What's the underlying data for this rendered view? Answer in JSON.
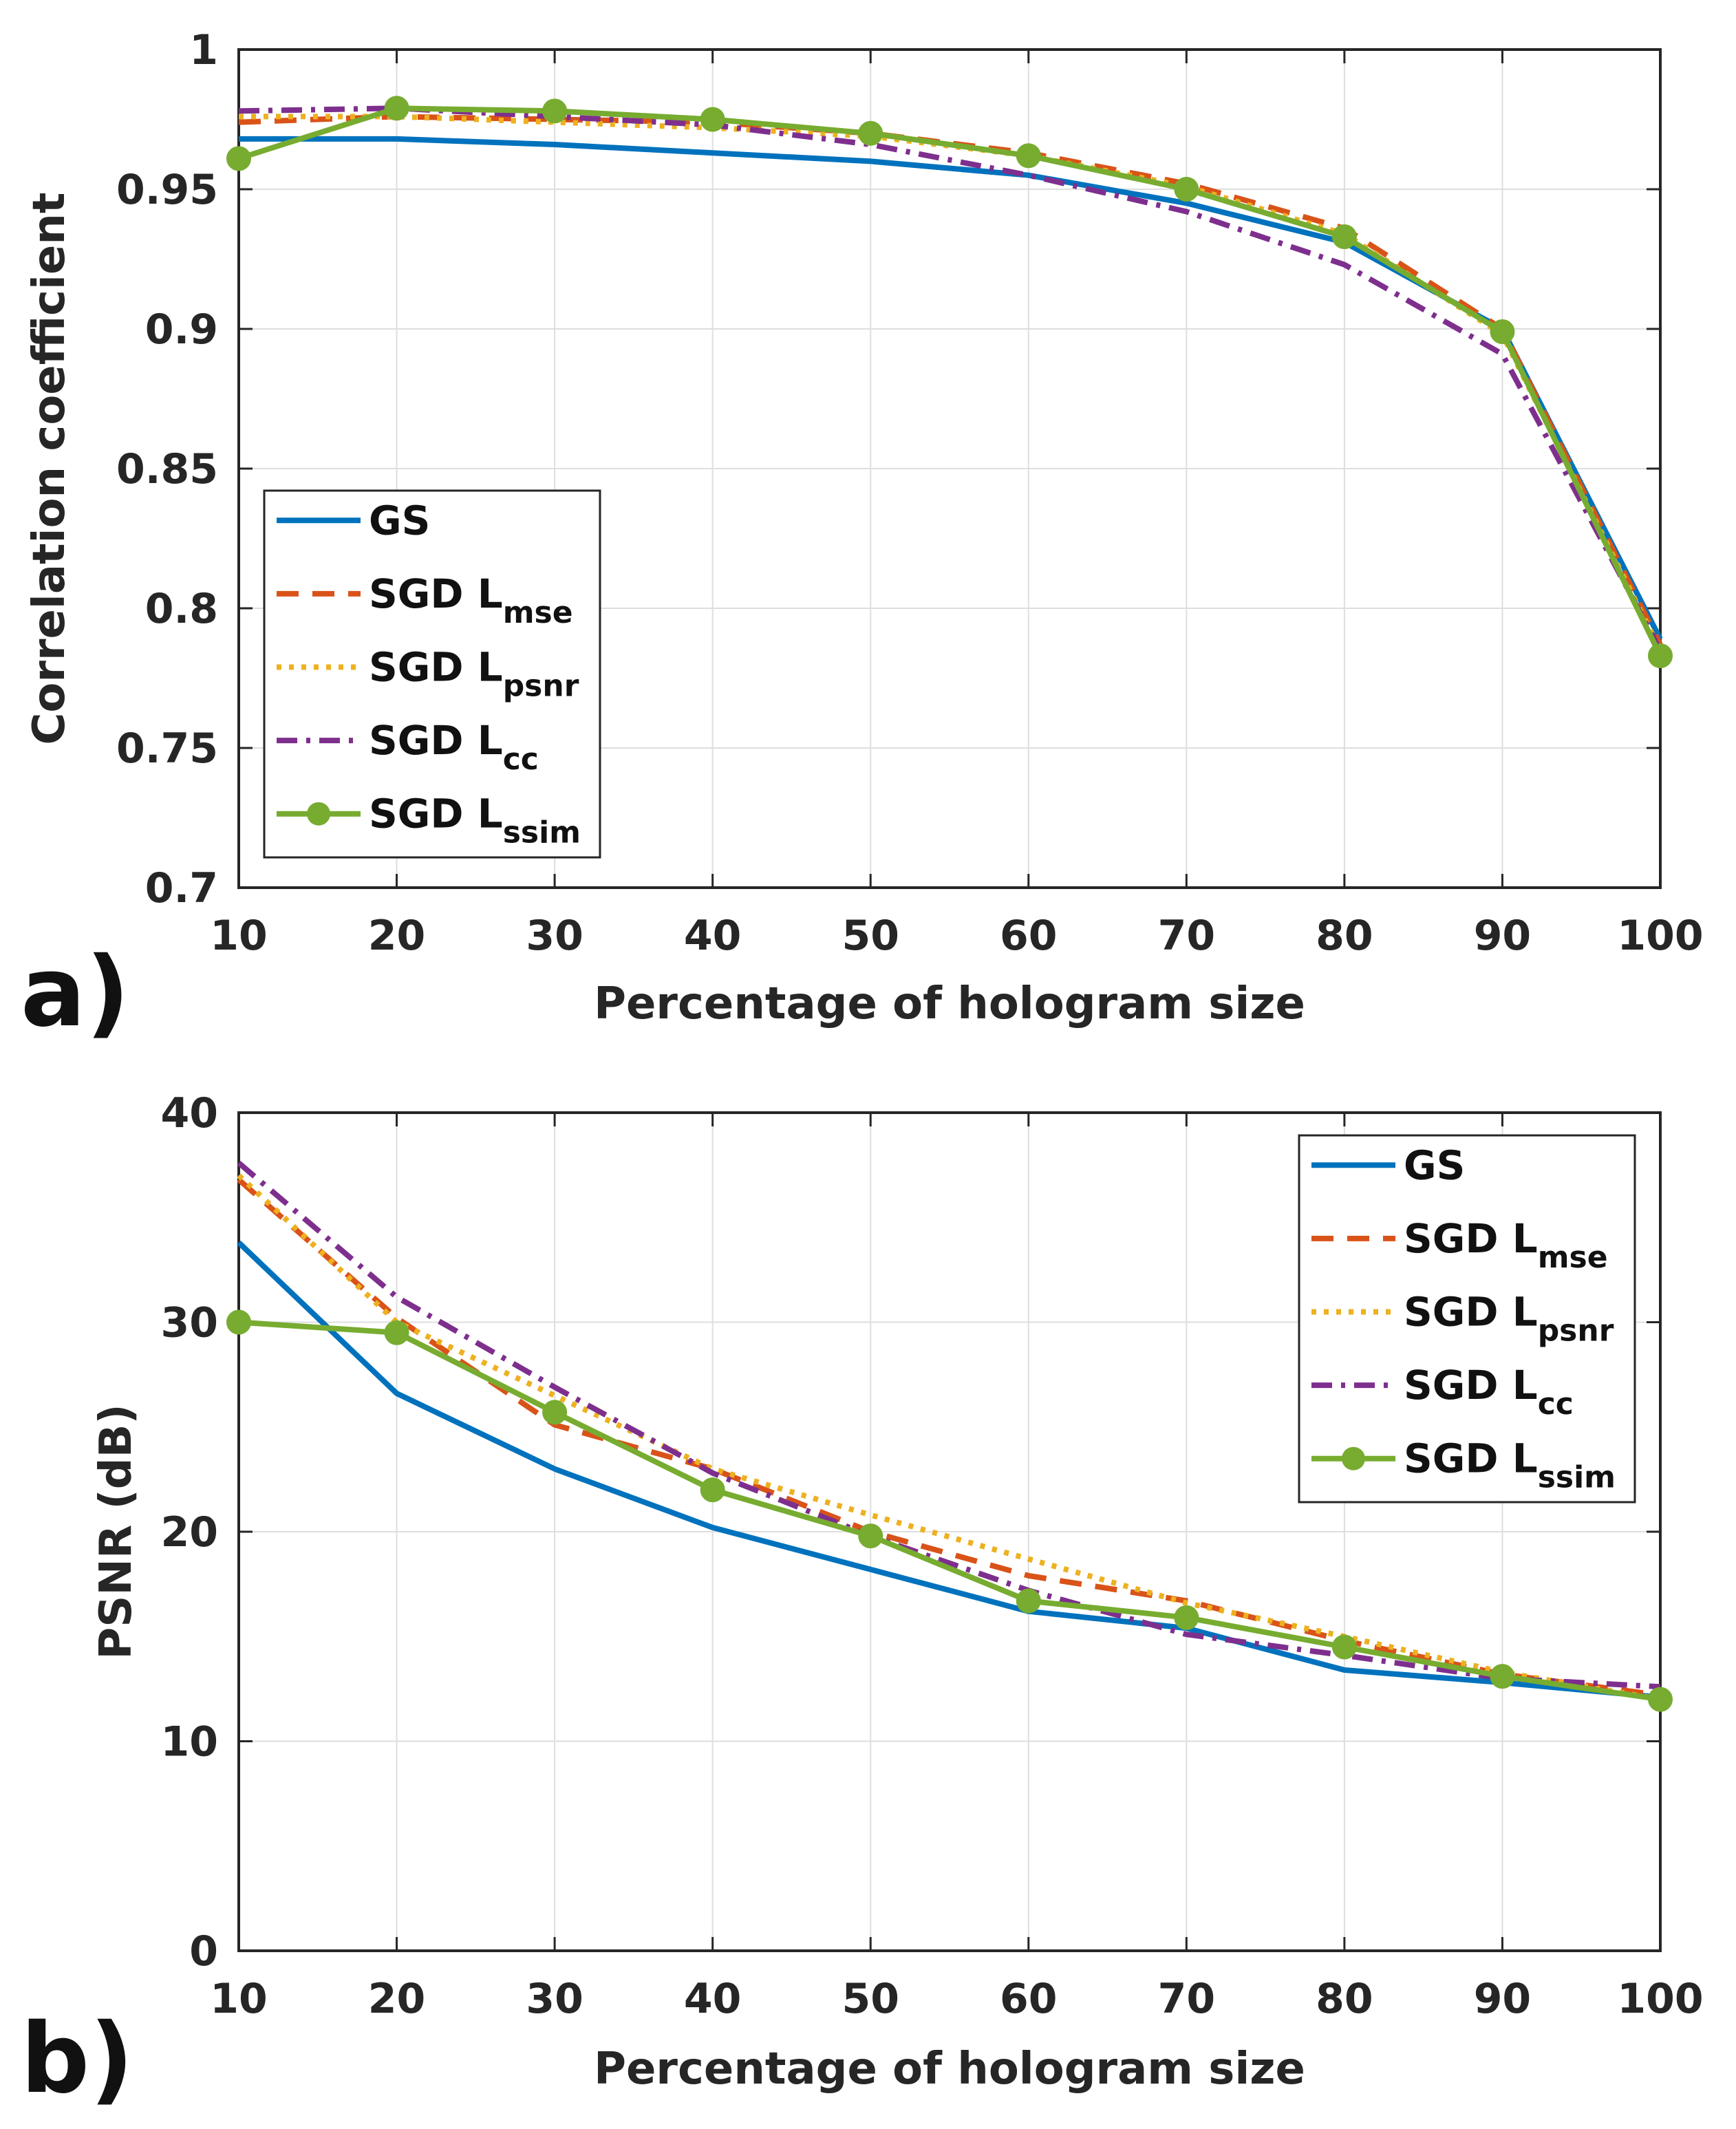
{
  "chart_data": [
    {
      "type": "line",
      "panel": "a)",
      "xlabel": "Percentage of hologram size",
      "ylabel": "Correlation coefficient",
      "x": [
        10,
        20,
        30,
        40,
        50,
        60,
        70,
        80,
        90,
        100
      ],
      "xlim": [
        10,
        100
      ],
      "ylim": [
        0.7,
        1
      ],
      "xticks": [
        "10",
        "20",
        "30",
        "40",
        "50",
        "60",
        "70",
        "80",
        "90",
        "100"
      ],
      "yticks": [
        {
          "value": 0.7,
          "label": "0.7"
        },
        {
          "value": 0.75,
          "label": "0.75"
        },
        {
          "value": 0.8,
          "label": "0.8"
        },
        {
          "value": 0.85,
          "label": "0.85"
        },
        {
          "value": 0.9,
          "label": "0.9"
        },
        {
          "value": 0.95,
          "label": "0.95"
        },
        {
          "value": 1,
          "label": "1"
        }
      ],
      "grid": true,
      "legend_position": "lower-left",
      "series": [
        {
          "name": "GS",
          "label_main": "GS",
          "label_sub": "",
          "color": "#0072BD",
          "style": "solid",
          "marker": false,
          "values": [
            0.968,
            0.968,
            0.966,
            0.963,
            0.96,
            0.955,
            0.945,
            0.931,
            0.9,
            0.789
          ]
        },
        {
          "name": "SGD Lmse",
          "label_main": "SGD L",
          "label_sub": "mse",
          "color": "#D95319",
          "style": "dashed",
          "marker": false,
          "values": [
            0.974,
            0.976,
            0.975,
            0.974,
            0.97,
            0.963,
            0.952,
            0.936,
            0.9,
            0.787
          ]
        },
        {
          "name": "SGD Lpsnr",
          "label_main": "SGD L",
          "label_sub": "psnr",
          "color": "#EDB120",
          "style": "dotted",
          "marker": false,
          "values": [
            0.976,
            0.976,
            0.974,
            0.972,
            0.969,
            0.962,
            0.951,
            0.934,
            0.898,
            0.785
          ]
        },
        {
          "name": "SGD Lcc",
          "label_main": "SGD L",
          "label_sub": "cc",
          "color": "#7E2F8E",
          "style": "dashdot",
          "marker": false,
          "values": [
            0.978,
            0.979,
            0.976,
            0.973,
            0.966,
            0.955,
            0.942,
            0.923,
            0.891,
            0.785
          ]
        },
        {
          "name": "SGD Lssim",
          "label_main": "SGD L",
          "label_sub": "ssim",
          "color": "#77AC30",
          "style": "solid",
          "marker": true,
          "values": [
            0.961,
            0.979,
            0.978,
            0.975,
            0.97,
            0.962,
            0.95,
            0.933,
            0.899,
            0.783
          ]
        }
      ]
    },
    {
      "type": "line",
      "panel": "b)",
      "xlabel": "Percentage of hologram size",
      "ylabel": "PSNR (dB)",
      "x": [
        10,
        20,
        30,
        40,
        50,
        60,
        70,
        80,
        90,
        100
      ],
      "xlim": [
        10,
        100
      ],
      "ylim": [
        0,
        40
      ],
      "xticks": [
        "10",
        "20",
        "30",
        "40",
        "50",
        "60",
        "70",
        "80",
        "90",
        "100"
      ],
      "yticks": [
        {
          "value": 0,
          "label": "0"
        },
        {
          "value": 10,
          "label": "10"
        },
        {
          "value": 20,
          "label": "20"
        },
        {
          "value": 30,
          "label": "30"
        },
        {
          "value": 40,
          "label": "40"
        }
      ],
      "grid": true,
      "legend_position": "top-right",
      "series": [
        {
          "name": "GS",
          "label_main": "GS",
          "label_sub": "",
          "color": "#0072BD",
          "style": "solid",
          "marker": false,
          "values": [
            33.8,
            26.6,
            23.0,
            20.2,
            18.2,
            16.2,
            15.4,
            13.4,
            12.8,
            12.1
          ]
        },
        {
          "name": "SGD Lmse",
          "label_main": "SGD L",
          "label_sub": "mse",
          "color": "#D95319",
          "style": "dashed",
          "marker": false,
          "values": [
            36.8,
            30.2,
            25.1,
            23.0,
            20.0,
            17.9,
            16.7,
            14.8,
            13.2,
            12.2
          ]
        },
        {
          "name": "SGD Lpsnr",
          "label_main": "SGD L",
          "label_sub": "psnr",
          "color": "#EDB120",
          "style": "dotted",
          "marker": false,
          "values": [
            37.0,
            30.0,
            26.5,
            23.0,
            20.8,
            18.7,
            16.6,
            15.0,
            13.3,
            12.0
          ]
        },
        {
          "name": "SGD Lcc",
          "label_main": "SGD L",
          "label_sub": "cc",
          "color": "#7E2F8E",
          "style": "dashdot",
          "marker": false,
          "values": [
            37.6,
            31.2,
            26.9,
            22.8,
            19.8,
            17.2,
            15.1,
            14.1,
            13.0,
            12.6
          ]
        },
        {
          "name": "SGD Lssim",
          "label_main": "SGD L",
          "label_sub": "ssim",
          "color": "#77AC30",
          "style": "solid",
          "marker": true,
          "values": [
            30.0,
            29.5,
            25.7,
            22.0,
            19.8,
            16.7,
            15.9,
            14.5,
            13.1,
            12.0
          ]
        }
      ]
    }
  ]
}
